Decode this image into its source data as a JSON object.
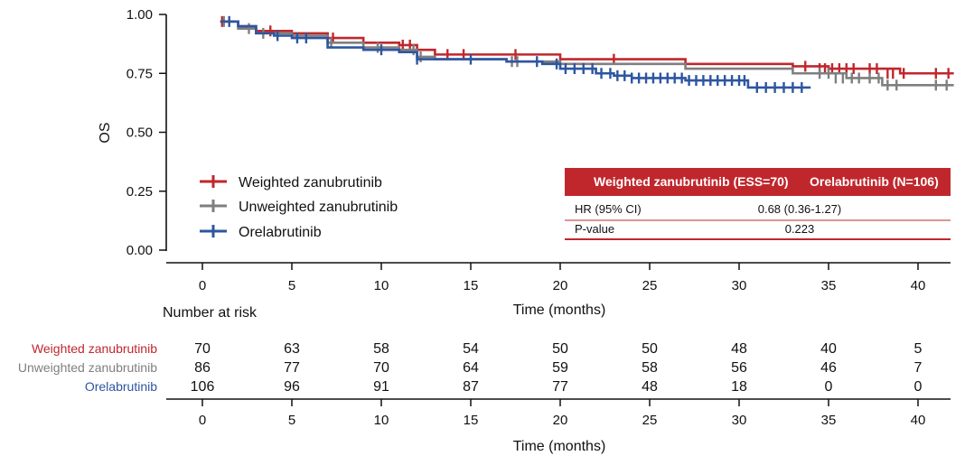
{
  "chart_data": {
    "type": "line",
    "title": "",
    "xlabel": "Time (months)",
    "ylabel": "OS",
    "xlim": [
      -2,
      42
    ],
    "ylim": [
      -0.05,
      1.0
    ],
    "xticks": [
      0,
      5,
      10,
      15,
      20,
      25,
      30,
      35,
      40
    ],
    "yticks": [
      "0.00",
      "0.25",
      "0.50",
      "0.75",
      "1.00"
    ],
    "series": [
      {
        "name": "Weighted zanubrutinib",
        "color": "#c0272d",
        "steps": [
          [
            1,
            0.97
          ],
          [
            2,
            0.95
          ],
          [
            3,
            0.93
          ],
          [
            5,
            0.92
          ],
          [
            7,
            0.9
          ],
          [
            9,
            0.88
          ],
          [
            11,
            0.87
          ],
          [
            12,
            0.85
          ],
          [
            13,
            0.83
          ],
          [
            20,
            0.81
          ],
          [
            27,
            0.79
          ],
          [
            33,
            0.78
          ],
          [
            35,
            0.77
          ],
          [
            39,
            0.75
          ],
          [
            42,
            0.75
          ]
        ],
        "censored": [
          [
            1.1,
            0.97
          ],
          [
            3.8,
            0.93
          ],
          [
            7.0,
            0.9
          ],
          [
            7.3,
            0.9
          ],
          [
            9.0,
            0.88
          ],
          [
            11.2,
            0.87
          ],
          [
            11.6,
            0.87
          ],
          [
            13.7,
            0.83
          ],
          [
            14.6,
            0.83
          ],
          [
            17.5,
            0.83
          ],
          [
            23.0,
            0.81
          ],
          [
            33.7,
            0.78
          ],
          [
            34.5,
            0.77
          ],
          [
            34.8,
            0.77
          ],
          [
            35.2,
            0.77
          ],
          [
            35.6,
            0.77
          ],
          [
            36.0,
            0.77
          ],
          [
            36.4,
            0.77
          ],
          [
            37.3,
            0.77
          ],
          [
            37.7,
            0.77
          ],
          [
            38.3,
            0.75
          ],
          [
            38.6,
            0.75
          ],
          [
            39.2,
            0.75
          ],
          [
            41.0,
            0.75
          ],
          [
            41.7,
            0.75
          ]
        ]
      },
      {
        "name": "Unweighted zanubrutinib",
        "color": "#7f7f7f",
        "steps": [
          [
            1,
            0.97
          ],
          [
            2,
            0.94
          ],
          [
            3,
            0.92
          ],
          [
            5,
            0.91
          ],
          [
            7,
            0.88
          ],
          [
            9,
            0.86
          ],
          [
            11,
            0.85
          ],
          [
            12,
            0.82
          ],
          [
            13,
            0.81
          ],
          [
            17,
            0.8
          ],
          [
            20,
            0.79
          ],
          [
            27,
            0.77
          ],
          [
            33,
            0.75
          ],
          [
            36,
            0.73
          ],
          [
            38,
            0.7
          ],
          [
            42,
            0.7
          ]
        ],
        "censored": [
          [
            1.2,
            0.97
          ],
          [
            2.6,
            0.94
          ],
          [
            3.4,
            0.92
          ],
          [
            7.2,
            0.88
          ],
          [
            9.8,
            0.86
          ],
          [
            11.8,
            0.85
          ],
          [
            12.2,
            0.82
          ],
          [
            17.3,
            0.8
          ],
          [
            17.6,
            0.8
          ],
          [
            34.5,
            0.75
          ],
          [
            35.0,
            0.75
          ],
          [
            35.4,
            0.73
          ],
          [
            35.8,
            0.73
          ],
          [
            36.3,
            0.73
          ],
          [
            36.7,
            0.73
          ],
          [
            37.3,
            0.73
          ],
          [
            37.8,
            0.73
          ],
          [
            38.3,
            0.7
          ],
          [
            38.8,
            0.7
          ],
          [
            41.0,
            0.7
          ],
          [
            41.6,
            0.7
          ]
        ]
      },
      {
        "name": "Orelabrutinib",
        "color": "#2d56a0",
        "steps": [
          [
            1,
            0.97
          ],
          [
            2,
            0.95
          ],
          [
            3,
            0.92
          ],
          [
            4,
            0.91
          ],
          [
            5,
            0.9
          ],
          [
            7,
            0.86
          ],
          [
            9,
            0.85
          ],
          [
            11,
            0.84
          ],
          [
            12,
            0.81
          ],
          [
            17,
            0.8
          ],
          [
            19,
            0.79
          ],
          [
            20,
            0.77
          ],
          [
            22,
            0.75
          ],
          [
            23,
            0.74
          ],
          [
            24,
            0.73
          ],
          [
            27,
            0.72
          ],
          [
            30.5,
            0.69
          ],
          [
            34,
            0.69
          ]
        ],
        "censored": [
          [
            1.5,
            0.97
          ],
          [
            4.2,
            0.91
          ],
          [
            5.3,
            0.9
          ],
          [
            5.8,
            0.9
          ],
          [
            10.0,
            0.85
          ],
          [
            12.0,
            0.81
          ],
          [
            15.0,
            0.81
          ],
          [
            18.7,
            0.8
          ],
          [
            19.8,
            0.79
          ],
          [
            20.3,
            0.77
          ],
          [
            20.8,
            0.77
          ],
          [
            21.3,
            0.77
          ],
          [
            21.8,
            0.77
          ],
          [
            22.3,
            0.75
          ],
          [
            22.8,
            0.75
          ],
          [
            23.2,
            0.74
          ],
          [
            23.6,
            0.74
          ],
          [
            24.0,
            0.73
          ],
          [
            24.4,
            0.73
          ],
          [
            24.8,
            0.73
          ],
          [
            25.2,
            0.73
          ],
          [
            25.6,
            0.73
          ],
          [
            26.0,
            0.73
          ],
          [
            26.4,
            0.73
          ],
          [
            26.8,
            0.73
          ],
          [
            27.2,
            0.72
          ],
          [
            27.6,
            0.72
          ],
          [
            28.0,
            0.72
          ],
          [
            28.4,
            0.72
          ],
          [
            28.8,
            0.72
          ],
          [
            29.2,
            0.72
          ],
          [
            29.6,
            0.72
          ],
          [
            30.0,
            0.72
          ],
          [
            30.3,
            0.72
          ],
          [
            31.0,
            0.69
          ],
          [
            31.5,
            0.69
          ],
          [
            32.0,
            0.69
          ],
          [
            32.5,
            0.69
          ],
          [
            33.0,
            0.69
          ],
          [
            33.5,
            0.69
          ]
        ]
      }
    ],
    "legend": [
      {
        "label": "Weighted zanubrutinib",
        "color": "#c0272d"
      },
      {
        "label": "Unweighted zanubrutinib",
        "color": "#7f7f7f"
      },
      {
        "label": "Orelabrutinib",
        "color": "#2d56a0"
      }
    ],
    "hr_table": {
      "header_left": "Weighted zanubrutinib (ESS=70)",
      "header_right": "Orelabrutinib (N=106)",
      "header_color": "#c0272d",
      "rows": [
        {
          "label": "HR (95% CI)",
          "value": "0.68 (0.36-1.27)"
        },
        {
          "label": "P-value",
          "value": "0.223"
        }
      ]
    },
    "risk_table": {
      "title": "Number at risk",
      "xlabel": "Time (months)",
      "timepoints": [
        0,
        5,
        10,
        15,
        20,
        25,
        30,
        35,
        40
      ],
      "rows": [
        {
          "label": "Weighted zanubrutinib",
          "color": "#c0272d",
          "values": [
            "70",
            "63",
            "58",
            "54",
            "50",
            "50",
            "48",
            "40",
            "5"
          ]
        },
        {
          "label": "Unweighted zanubrutinib",
          "color": "#7f7f7f",
          "values": [
            "86",
            "77",
            "70",
            "64",
            "59",
            "58",
            "56",
            "46",
            "7"
          ]
        },
        {
          "label": "Orelabrutinib",
          "color": "#2d56a0",
          "values": [
            "106",
            "96",
            "91",
            "87",
            "77",
            "48",
            "18",
            "0",
            "0"
          ]
        }
      ]
    }
  }
}
